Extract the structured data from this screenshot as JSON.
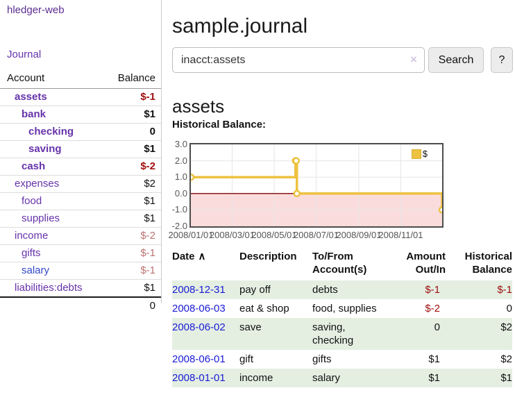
{
  "colors": {
    "link_purple": "#6633aa",
    "link_blue": "#3348c8",
    "date_link_blue": "#1a1ad6",
    "negative_strong": "#a01010",
    "negative_soft": "#bb7272",
    "row_stripe_green": "#e4efe2",
    "chart_gold": "#edc240",
    "negative_region_pink": "#fadcdc",
    "zero_line_red": "#8b1a1a"
  },
  "sidebar": {
    "brand": "hledger-web",
    "journal_link": "Journal",
    "accounts_table": {
      "headers": [
        "Account",
        "Balance"
      ],
      "rows": [
        {
          "account": "assets",
          "indent": 0,
          "bold": true,
          "balance": "$-1",
          "balance_style": "neg"
        },
        {
          "account": "bank",
          "indent": 1,
          "bold": true,
          "balance": "$1",
          "balance_style": "pos"
        },
        {
          "account": "checking",
          "indent": 2,
          "bold": true,
          "balance": "0",
          "balance_style": "pos"
        },
        {
          "account": "saving",
          "indent": 2,
          "bold": true,
          "balance": "$1",
          "balance_style": "pos"
        },
        {
          "account": "cash",
          "indent": 1,
          "bold": true,
          "balance": "$-2",
          "balance_style": "neg"
        },
        {
          "account": "expenses",
          "indent": 0,
          "bold": false,
          "balance": "$2",
          "balance_style": "pos"
        },
        {
          "account": "food",
          "indent": 1,
          "bold": false,
          "balance": "$1",
          "balance_style": "pos"
        },
        {
          "account": "supplies",
          "indent": 1,
          "bold": false,
          "balance": "$1",
          "balance_style": "pos"
        },
        {
          "account": "income",
          "indent": 0,
          "bold": false,
          "balance": "$-2",
          "balance_style": "neg-soft"
        },
        {
          "account": "gifts",
          "indent": 1,
          "bold": false,
          "balance": "$-1",
          "balance_style": "neg-soft"
        },
        {
          "account": "salary",
          "indent": 1,
          "bold": false,
          "balance": "$-1",
          "balance_style": "neg-soft",
          "link_color": "blue"
        },
        {
          "account": "liabilities:debts",
          "indent": 0,
          "bold": false,
          "balance": "$1",
          "balance_style": "pos"
        }
      ],
      "total": "0"
    }
  },
  "header": {
    "title": "sample.journal"
  },
  "search": {
    "value": "inacct:assets",
    "clear_icon": "×",
    "button_label": "Search",
    "help_label": "?"
  },
  "main": {
    "account_heading": "assets",
    "chart_label": "Historical Balance:"
  },
  "chart_data": {
    "type": "line",
    "step": true,
    "title": "Historical Balance:",
    "series": [
      {
        "name": "$",
        "color": "#edc240",
        "points": [
          [
            "2008-01-01",
            1
          ],
          [
            "2008-06-01",
            2
          ],
          [
            "2008-06-02",
            2
          ],
          [
            "2008-06-03",
            0
          ],
          [
            "2008-12-31",
            -1
          ]
        ]
      }
    ],
    "xlim": [
      "2008-01-01",
      "2008-12-31"
    ],
    "ylim": [
      -2,
      3
    ],
    "yticks": [
      "3.0",
      "2.0",
      "1.0",
      "0.0",
      "-1.0",
      "-2.0"
    ],
    "xticks": [
      {
        "date": "2008-01-01",
        "label": "2008/01/01"
      },
      {
        "date": "2008-03-01",
        "label": "2008/03/01"
      },
      {
        "date": "2008-05-01",
        "label": "2008/05/01"
      },
      {
        "date": "2008-07-01",
        "label": "2008/07/01"
      },
      {
        "date": "2008-09-01",
        "label": "2008/09/01"
      },
      {
        "date": "2008-11-01",
        "label": "2008/11/01"
      }
    ],
    "grid": true,
    "legend_position": "top-right",
    "negative_region_color": "#fadcdc",
    "zero_line_color": "#8b1a1a"
  },
  "register_table": {
    "headers": [
      {
        "line1": "Date",
        "line2": "",
        "sort": "asc",
        "align": "left"
      },
      {
        "line1": "Description",
        "line2": "",
        "align": "left"
      },
      {
        "line1": "To/From",
        "line2": "Account(s)",
        "align": "left"
      },
      {
        "line1": "Amount",
        "line2": "Out/In",
        "align": "right"
      },
      {
        "line1": "Historical",
        "line2": "Balance",
        "align": "right"
      }
    ],
    "sort_indicator": "∧",
    "rows": [
      {
        "date": "2008-12-31",
        "description": "pay off",
        "accounts_lines": [
          "debts"
        ],
        "amount": "$-1",
        "amount_neg": true,
        "balance": "$-1",
        "balance_neg": true
      },
      {
        "date": "2008-06-03",
        "description": "eat & shop",
        "accounts_lines": [
          "food, supplies"
        ],
        "amount": "$-2",
        "amount_neg": true,
        "balance": "0",
        "balance_neg": false
      },
      {
        "date": "2008-06-02",
        "description": "save",
        "accounts_lines": [
          "saving,",
          "checking"
        ],
        "amount": "0",
        "amount_neg": false,
        "balance": "$2",
        "balance_neg": false
      },
      {
        "date": "2008-06-01",
        "description": "gift",
        "accounts_lines": [
          "gifts"
        ],
        "amount": "$1",
        "amount_neg": false,
        "balance": "$2",
        "balance_neg": false
      },
      {
        "date": "2008-01-01",
        "description": "income",
        "accounts_lines": [
          "salary"
        ],
        "amount": "$1",
        "amount_neg": false,
        "balance": "$1",
        "balance_neg": false
      }
    ]
  }
}
